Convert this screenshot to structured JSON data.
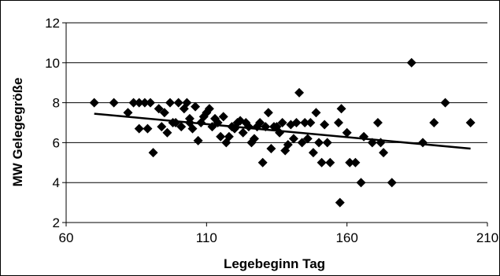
{
  "chart_data": {
    "type": "scatter",
    "title": "",
    "xlabel": "Legebeginn Tag",
    "ylabel": "MW Gelegegröße",
    "xlim": [
      60,
      210
    ],
    "ylim": [
      2,
      12
    ],
    "x_ticks": [
      60,
      110,
      160,
      210
    ],
    "y_ticks": [
      2,
      4,
      6,
      8,
      10,
      12
    ],
    "x_tick_labels": [
      "60",
      "110",
      "160",
      "210"
    ],
    "y_tick_labels": [
      "2",
      "4",
      "6",
      "8",
      "10",
      "12"
    ],
    "grid": "horizontal",
    "legend": "none",
    "marker": "diamond",
    "marker_color": "#000000",
    "points": [
      [
        70,
        8
      ],
      [
        77,
        8
      ],
      [
        82,
        7.5
      ],
      [
        84,
        8
      ],
      [
        86,
        6.7
      ],
      [
        86,
        8
      ],
      [
        88,
        8
      ],
      [
        89,
        6.7
      ],
      [
        90,
        8
      ],
      [
        91,
        5.5
      ],
      [
        93,
        7.7
      ],
      [
        94,
        6.8
      ],
      [
        95,
        7.5
      ],
      [
        96,
        6.5
      ],
      [
        97,
        8
      ],
      [
        98,
        7
      ],
      [
        99,
        7
      ],
      [
        100,
        8
      ],
      [
        101,
        6.8
      ],
      [
        102,
        7.7
      ],
      [
        103,
        8
      ],
      [
        104,
        7.2
      ],
      [
        104,
        7
      ],
      [
        105,
        6.7
      ],
      [
        106,
        7.8
      ],
      [
        107,
        6.1
      ],
      [
        108,
        7
      ],
      [
        109,
        7.3
      ],
      [
        110,
        7.5
      ],
      [
        111,
        7.7
      ],
      [
        112,
        6.8
      ],
      [
        113,
        7.2
      ],
      [
        114,
        7
      ],
      [
        115,
        6.3
      ],
      [
        116,
        7.3
      ],
      [
        117,
        6
      ],
      [
        118,
        6.3
      ],
      [
        119,
        6.8
      ],
      [
        120,
        6.7
      ],
      [
        121,
        7
      ],
      [
        122,
        7.1
      ],
      [
        123,
        6.5
      ],
      [
        124,
        7
      ],
      [
        125,
        6.8
      ],
      [
        126,
        6
      ],
      [
        127,
        6.2
      ],
      [
        128,
        6.8
      ],
      [
        129,
        7
      ],
      [
        130,
        5
      ],
      [
        131,
        6.8
      ],
      [
        132,
        7.5
      ],
      [
        133,
        5.7
      ],
      [
        134,
        6.8
      ],
      [
        135,
        6.8
      ],
      [
        136,
        6.5
      ],
      [
        137,
        7
      ],
      [
        138,
        5.6
      ],
      [
        139,
        5.9
      ],
      [
        140,
        6.9
      ],
      [
        141,
        6.2
      ],
      [
        142,
        7
      ],
      [
        143,
        8.5
      ],
      [
        144,
        6
      ],
      [
        145,
        7
      ],
      [
        146,
        6.2
      ],
      [
        147,
        7
      ],
      [
        148,
        5.5
      ],
      [
        149,
        7.5
      ],
      [
        150,
        6
      ],
      [
        151,
        5
      ],
      [
        152,
        6.9
      ],
      [
        153,
        6
      ],
      [
        154,
        5
      ],
      [
        157,
        7
      ],
      [
        157.5,
        3
      ],
      [
        158,
        7.7
      ],
      [
        160,
        6.5
      ],
      [
        161,
        5
      ],
      [
        163,
        5
      ],
      [
        165,
        4
      ],
      [
        166,
        6.3
      ],
      [
        169,
        6
      ],
      [
        171,
        7
      ],
      [
        172,
        6
      ],
      [
        173,
        5.5
      ],
      [
        176,
        4
      ],
      [
        183,
        10
      ],
      [
        187,
        6
      ],
      [
        191,
        7
      ],
      [
        195,
        8
      ],
      [
        204,
        7
      ]
    ],
    "trendline": {
      "type": "linear",
      "from": [
        70,
        7.45
      ],
      "to": [
        204,
        5.7
      ]
    }
  }
}
